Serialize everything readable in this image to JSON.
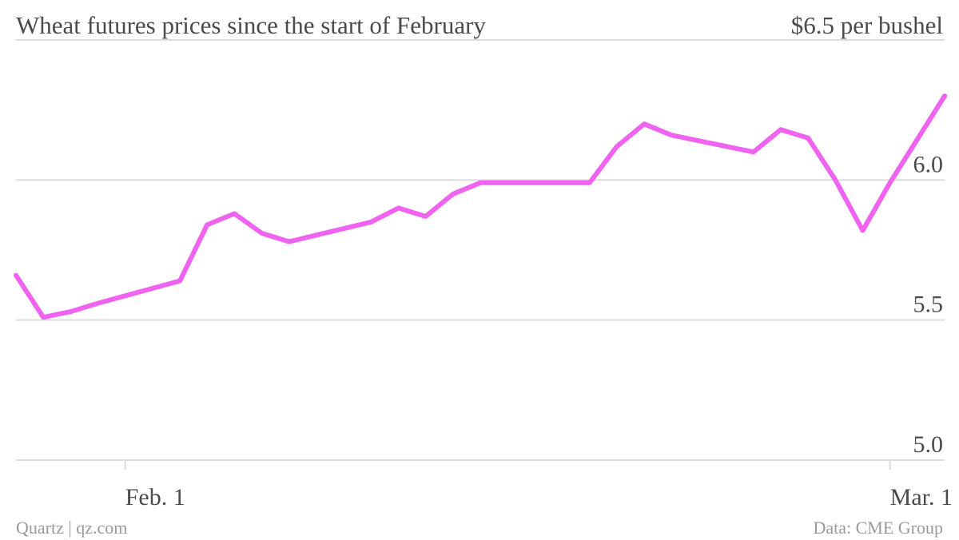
{
  "chart_data": {
    "type": "line",
    "title": "Wheat futures prices since the start of February",
    "unit_label": "$6.5 per bushel",
    "xlabel": "",
    "ylabel": "",
    "ylim": [
      5.0,
      6.5
    ],
    "y_ticks": [
      {
        "value": 5.0,
        "label": "5.0"
      },
      {
        "value": 5.5,
        "label": "5.5"
      },
      {
        "value": 6.0,
        "label": "6.0"
      }
    ],
    "x_ticks": [
      {
        "x": "2014-02-01",
        "label": "Feb. 1"
      },
      {
        "x": "2014-03-01",
        "label": "Mar. 1"
      }
    ],
    "x_range": [
      "2014-01-28",
      "2014-03-03"
    ],
    "grid": true,
    "legend": "none",
    "series": [
      {
        "color": "#f062f0",
        "points": [
          {
            "x": "2014-01-28",
            "y": 5.66
          },
          {
            "x": "2014-01-29",
            "y": 5.51
          },
          {
            "x": "2014-01-30",
            "y": 5.53
          },
          {
            "x": "2014-01-31",
            "y": 5.56
          },
          {
            "x": "2014-02-03",
            "y": 5.64
          },
          {
            "x": "2014-02-04",
            "y": 5.84
          },
          {
            "x": "2014-02-05",
            "y": 5.88
          },
          {
            "x": "2014-02-06",
            "y": 5.81
          },
          {
            "x": "2014-02-07",
            "y": 5.78
          },
          {
            "x": "2014-02-10",
            "y": 5.85
          },
          {
            "x": "2014-02-11",
            "y": 5.9
          },
          {
            "x": "2014-02-12",
            "y": 5.87
          },
          {
            "x": "2014-02-13",
            "y": 5.95
          },
          {
            "x": "2014-02-14",
            "y": 5.99
          },
          {
            "x": "2014-02-18",
            "y": 5.99
          },
          {
            "x": "2014-02-19",
            "y": 6.12
          },
          {
            "x": "2014-02-20",
            "y": 6.2
          },
          {
            "x": "2014-02-21",
            "y": 6.16
          },
          {
            "x": "2014-02-24",
            "y": 6.1
          },
          {
            "x": "2014-02-25",
            "y": 6.18
          },
          {
            "x": "2014-02-26",
            "y": 6.15
          },
          {
            "x": "2014-02-27",
            "y": 6.0
          },
          {
            "x": "2014-02-28",
            "y": 5.82
          },
          {
            "x": "2014-03-01",
            "y": 5.99
          },
          {
            "x": "2014-03-03",
            "y": 6.3
          }
        ]
      }
    ]
  },
  "footer": {
    "source_left": "Quartz | qz.com",
    "source_right": "Data: CME Group"
  }
}
